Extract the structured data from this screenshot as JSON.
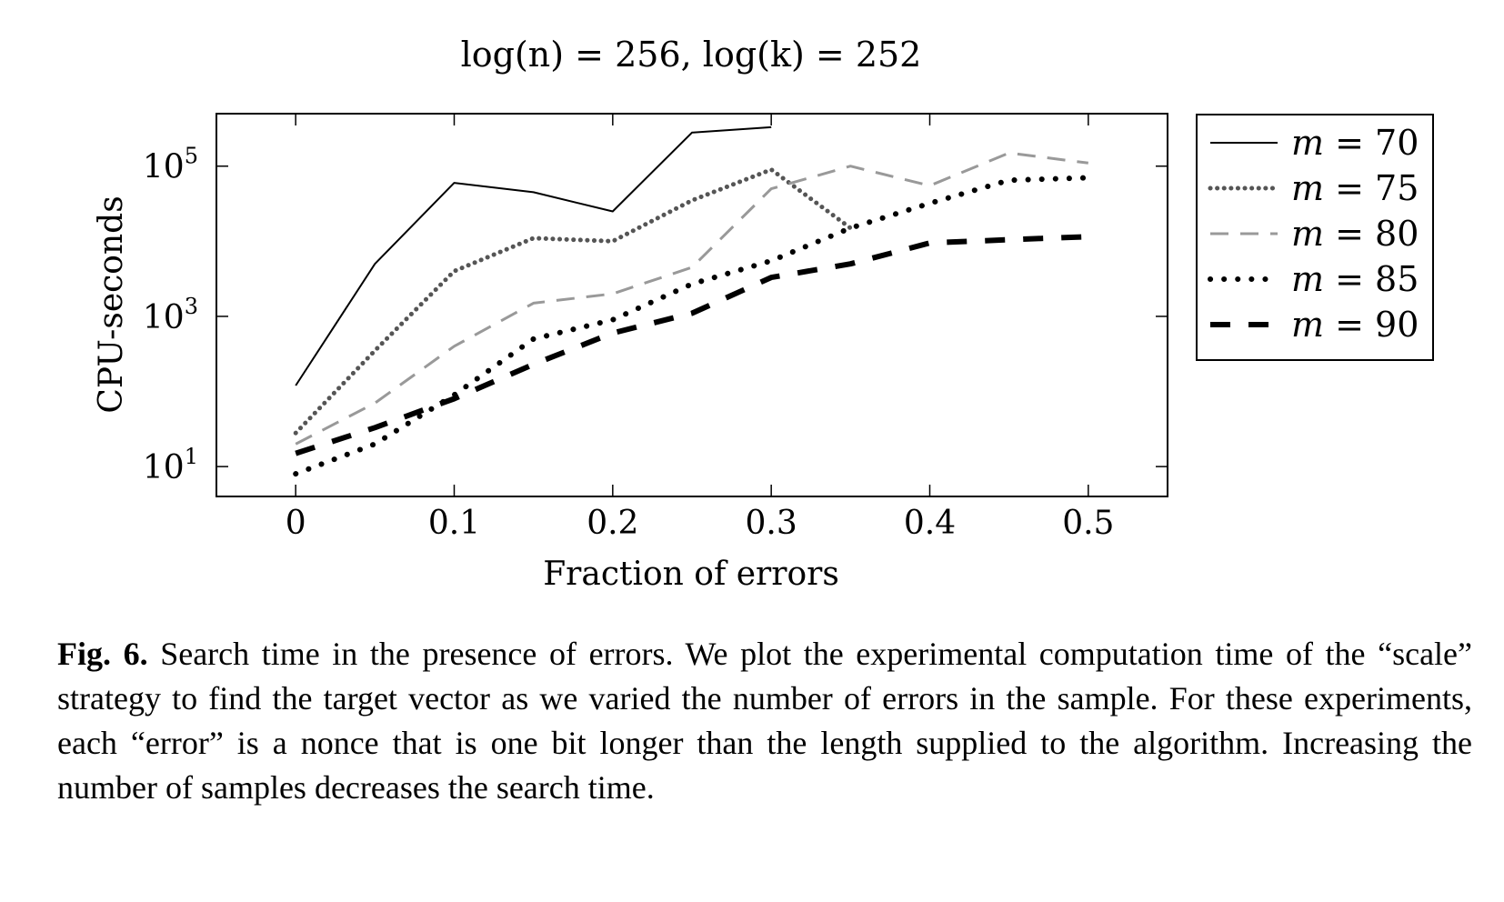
{
  "chart_data": {
    "type": "line",
    "title": "log(n) = 256, log(k) = 252",
    "xlabel": "Fraction of errors",
    "ylabel": "CPU-seconds",
    "x_ticks": [
      "0",
      "0.1",
      "0.2",
      "0.3",
      "0.4",
      "0.5"
    ],
    "x_tick_values": [
      0,
      0.1,
      0.2,
      0.3,
      0.4,
      0.5
    ],
    "y_ticks": [
      {
        "base": "10",
        "exp": "1",
        "value": 10
      },
      {
        "base": "10",
        "exp": "3",
        "value": 1000
      },
      {
        "base": "10",
        "exp": "5",
        "value": 100000
      }
    ],
    "y_scale": "log",
    "xlim": [
      -0.05,
      0.55
    ],
    "ylim": [
      4,
      500000
    ],
    "grid": false,
    "legend_position": "outside-right",
    "series": [
      {
        "name": "m = 70",
        "color": "#000000",
        "style": "solid",
        "x": [
          0,
          0.05,
          0.1,
          0.15,
          0.2,
          0.25,
          0.3
        ],
        "y": [
          120,
          5000,
          60000,
          45000,
          25000,
          280000,
          330000
        ]
      },
      {
        "name": "m = 75",
        "color": "#555555",
        "style": "dotted",
        "x": [
          0,
          0.05,
          0.1,
          0.15,
          0.2,
          0.25,
          0.3,
          0.35
        ],
        "y": [
          28,
          350,
          4000,
          11000,
          10000,
          35000,
          90000,
          15000
        ]
      },
      {
        "name": "m = 80",
        "color": "#999999",
        "style": "dashed",
        "x": [
          0,
          0.05,
          0.1,
          0.15,
          0.2,
          0.25,
          0.3,
          0.35,
          0.4,
          0.45,
          0.5
        ],
        "y": [
          20,
          70,
          400,
          1500,
          2000,
          4500,
          50000,
          100000,
          55000,
          150000,
          110000
        ]
      },
      {
        "name": "m = 85",
        "color": "#000000",
        "style": "densely-dotted",
        "x": [
          0,
          0.05,
          0.1,
          0.15,
          0.2,
          0.25,
          0.3,
          0.35,
          0.4,
          0.45,
          0.5
        ],
        "y": [
          8,
          20,
          90,
          500,
          900,
          2700,
          5500,
          15000,
          32000,
          65000,
          70000
        ]
      },
      {
        "name": "m = 90",
        "color": "#000000",
        "style": "thick-dashed",
        "x": [
          0,
          0.05,
          0.1,
          0.15,
          0.2,
          0.25,
          0.3,
          0.35,
          0.4,
          0.45,
          0.5
        ],
        "y": [
          15,
          33,
          80,
          230,
          600,
          1100,
          3300,
          5000,
          9500,
          10500,
          11500
        ]
      }
    ],
    "legend": [
      {
        "math": "m",
        "rest": " = 70"
      },
      {
        "math": "m",
        "rest": " = 75"
      },
      {
        "math": "m",
        "rest": " = 80"
      },
      {
        "math": "m",
        "rest": " = 85"
      },
      {
        "math": "m",
        "rest": " = 90"
      }
    ]
  },
  "caption": {
    "label": "Fig. 6.",
    "text": "Search time in the presence of errors. We plot the experimental computation time of the “scale” strategy to find the target vector as we varied the number of errors in the sample. For these experiments, each “error” is a nonce that is one bit longer than the length supplied to the algorithm. Increasing the number of samples decreases the search time."
  }
}
